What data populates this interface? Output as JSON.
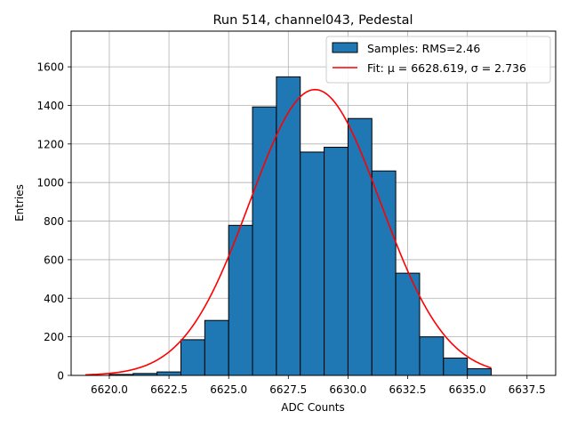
{
  "chart_data": {
    "type": "histogram",
    "title": "Run 514, channel043, Pedestal",
    "xlabel": "ADC Counts",
    "ylabel": "Entries",
    "xlim": [
      6618.4,
      6638.7
    ],
    "ylim": [
      0,
      1785
    ],
    "xticks": [
      6620.0,
      6622.5,
      6625.0,
      6627.5,
      6630.0,
      6632.5,
      6635.0,
      6637.5
    ],
    "xtick_labels": [
      "6620.0",
      "6622.5",
      "6625.0",
      "6627.5",
      "6630.0",
      "6632.5",
      "6635.0",
      "6637.5"
    ],
    "yticks": [
      0,
      200,
      400,
      600,
      800,
      1000,
      1200,
      1400,
      1600
    ],
    "ytick_labels": [
      "0",
      "200",
      "400",
      "600",
      "800",
      "1000",
      "1200",
      "1400",
      "1600"
    ],
    "grid": true,
    "legend_position": "top-right",
    "bins": {
      "edges": [
        6620,
        6621,
        6622,
        6623,
        6624,
        6625,
        6626,
        6627,
        6628,
        6629,
        6630,
        6631,
        6632,
        6633,
        6634,
        6635,
        6636
      ],
      "counts": [
        5,
        10,
        18,
        185,
        285,
        778,
        1392,
        1548,
        1158,
        1183,
        1332,
        1060,
        530,
        200,
        90,
        35
      ]
    },
    "fit": {
      "mu": 6628.619,
      "sigma": 2.736,
      "amplitude": 1482,
      "x_range": [
        6619,
        6636
      ]
    },
    "series": [
      {
        "name": "Samples: RMS=2.46",
        "kind": "bars",
        "color": "#1f77b4"
      },
      {
        "name": "Fit: μ = 6628.619, σ = 2.736",
        "kind": "line",
        "color": "#ff0000"
      }
    ]
  }
}
